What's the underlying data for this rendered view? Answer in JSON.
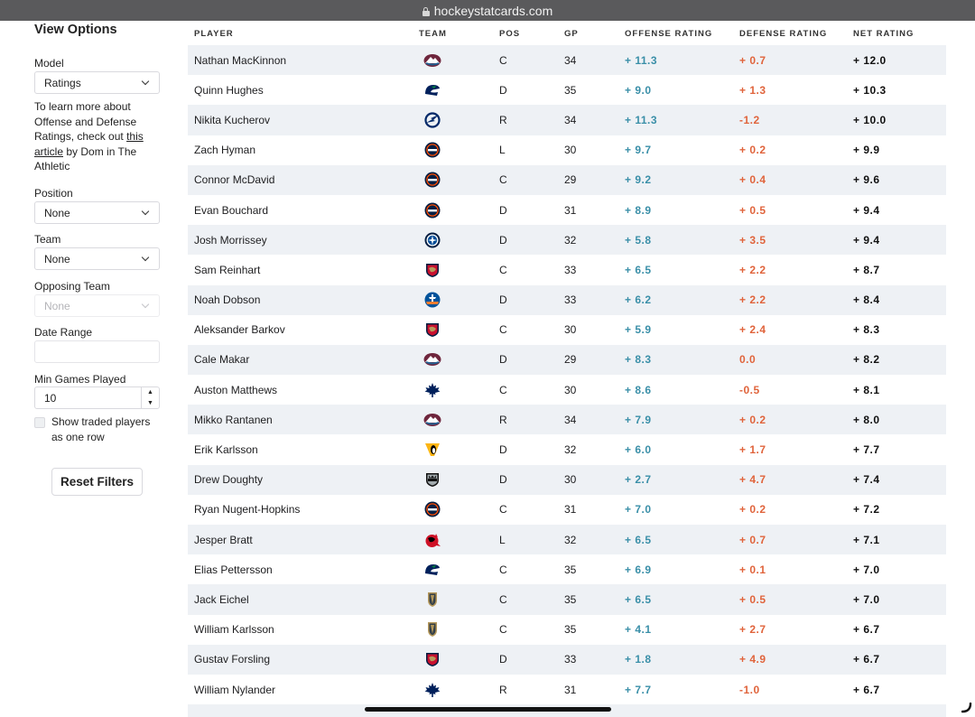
{
  "browser": {
    "url": "hockeystatcards.com"
  },
  "sidebar": {
    "title": "View Options",
    "model": {
      "label": "Model",
      "value": "Ratings"
    },
    "info": {
      "before": "To learn more about Offense and Defense Ratings, check out ",
      "link": "this article",
      "after": " by Dom in The Athletic"
    },
    "position": {
      "label": "Position",
      "value": "None"
    },
    "team": {
      "label": "Team",
      "value": "None"
    },
    "opposing_team": {
      "label": "Opposing Team",
      "value": "None"
    },
    "date_range": {
      "label": "Date Range",
      "value": ""
    },
    "min_games": {
      "label": "Min Games Played",
      "value": "10"
    },
    "traded_checkbox": {
      "label": "Show traded players as one row",
      "checked": false
    },
    "reset_label": "Reset Filters"
  },
  "table": {
    "headers": {
      "player": "PLAYER",
      "team": "TEAM",
      "pos": "POS",
      "gp": "GP",
      "offense": "OFFENSE RATING",
      "defense": "DEFENSE RATING",
      "net": "NET RATING"
    },
    "colors": {
      "offense": "#3a8fa8",
      "defense_positive": "#e0643c",
      "defense_negative": "#e0643c",
      "net": "#111111"
    },
    "rows": [
      {
        "player": "Nathan MacKinnon",
        "team_icon": "avalanche-logo",
        "pos": "C",
        "gp": "34",
        "off": "+ 11.3",
        "def": "+ 0.7",
        "net": "+ 12.0"
      },
      {
        "player": "Quinn Hughes",
        "team_icon": "canucks-logo",
        "pos": "D",
        "gp": "35",
        "off": "+ 9.0",
        "def": "+ 1.3",
        "net": "+ 10.3"
      },
      {
        "player": "Nikita Kucherov",
        "team_icon": "lightning-logo",
        "pos": "R",
        "gp": "34",
        "off": "+ 11.3",
        "def": "-1.2",
        "net": "+ 10.0"
      },
      {
        "player": "Zach Hyman",
        "team_icon": "oilers-logo",
        "pos": "L",
        "gp": "30",
        "off": "+ 9.7",
        "def": "+ 0.2",
        "net": "+ 9.9"
      },
      {
        "player": "Connor McDavid",
        "team_icon": "oilers-logo",
        "pos": "C",
        "gp": "29",
        "off": "+ 9.2",
        "def": "+ 0.4",
        "net": "+ 9.6"
      },
      {
        "player": "Evan Bouchard",
        "team_icon": "oilers-logo",
        "pos": "D",
        "gp": "31",
        "off": "+ 8.9",
        "def": "+ 0.5",
        "net": "+ 9.4"
      },
      {
        "player": "Josh Morrissey",
        "team_icon": "jets-logo",
        "pos": "D",
        "gp": "32",
        "off": "+ 5.8",
        "def": "+ 3.5",
        "net": "+ 9.4"
      },
      {
        "player": "Sam Reinhart",
        "team_icon": "panthers-logo",
        "pos": "C",
        "gp": "33",
        "off": "+ 6.5",
        "def": "+ 2.2",
        "net": "+ 8.7"
      },
      {
        "player": "Noah Dobson",
        "team_icon": "islanders-logo",
        "pos": "D",
        "gp": "33",
        "off": "+ 6.2",
        "def": "+ 2.2",
        "net": "+ 8.4"
      },
      {
        "player": "Aleksander Barkov",
        "team_icon": "panthers-logo",
        "pos": "C",
        "gp": "30",
        "off": "+ 5.9",
        "def": "+ 2.4",
        "net": "+ 8.3"
      },
      {
        "player": "Cale Makar",
        "team_icon": "avalanche-logo",
        "pos": "D",
        "gp": "29",
        "off": "+ 8.3",
        "def": "0.0",
        "net": "+ 8.2"
      },
      {
        "player": "Auston Matthews",
        "team_icon": "maple-leafs-logo",
        "pos": "C",
        "gp": "30",
        "off": "+ 8.6",
        "def": "-0.5",
        "net": "+ 8.1"
      },
      {
        "player": "Mikko Rantanen",
        "team_icon": "avalanche-logo",
        "pos": "R",
        "gp": "34",
        "off": "+ 7.9",
        "def": "+ 0.2",
        "net": "+ 8.0"
      },
      {
        "player": "Erik Karlsson",
        "team_icon": "penguins-logo",
        "pos": "D",
        "gp": "32",
        "off": "+ 6.0",
        "def": "+ 1.7",
        "net": "+ 7.7"
      },
      {
        "player": "Drew Doughty",
        "team_icon": "kings-logo",
        "pos": "D",
        "gp": "30",
        "off": "+ 2.7",
        "def": "+ 4.7",
        "net": "+ 7.4"
      },
      {
        "player": "Ryan Nugent-Hopkins",
        "team_icon": "oilers-logo",
        "pos": "C",
        "gp": "31",
        "off": "+ 7.0",
        "def": "+ 0.2",
        "net": "+ 7.2"
      },
      {
        "player": "Jesper Bratt",
        "team_icon": "devils-logo",
        "pos": "L",
        "gp": "32",
        "off": "+ 6.5",
        "def": "+ 0.7",
        "net": "+ 7.1"
      },
      {
        "player": "Elias Pettersson",
        "team_icon": "canucks-logo",
        "pos": "C",
        "gp": "35",
        "off": "+ 6.9",
        "def": "+ 0.1",
        "net": "+ 7.0"
      },
      {
        "player": "Jack Eichel",
        "team_icon": "golden-knights-logo",
        "pos": "C",
        "gp": "35",
        "off": "+ 6.5",
        "def": "+ 0.5",
        "net": "+ 7.0"
      },
      {
        "player": "William Karlsson",
        "team_icon": "golden-knights-logo",
        "pos": "C",
        "gp": "35",
        "off": "+ 4.1",
        "def": "+ 2.7",
        "net": "+ 6.7"
      },
      {
        "player": "Gustav Forsling",
        "team_icon": "panthers-logo",
        "pos": "D",
        "gp": "33",
        "off": "+ 1.8",
        "def": "+ 4.9",
        "net": "+ 6.7"
      },
      {
        "player": "William Nylander",
        "team_icon": "maple-leafs-logo",
        "pos": "R",
        "gp": "31",
        "off": "+ 7.7",
        "def": "-1.0",
        "net": "+ 6.7"
      }
    ]
  }
}
